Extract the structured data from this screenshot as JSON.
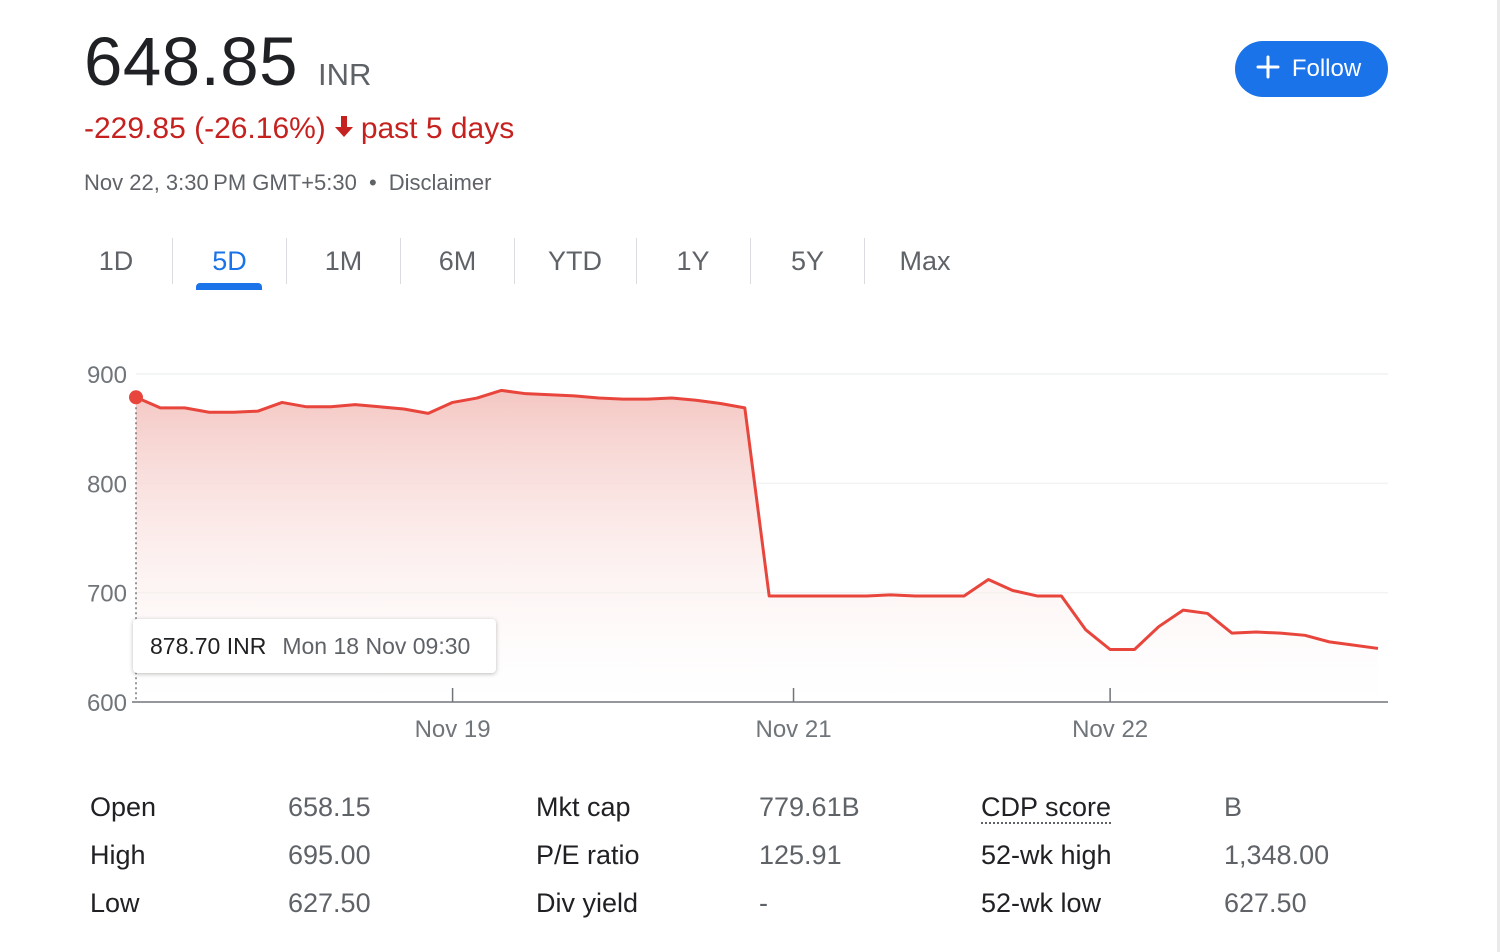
{
  "quote": {
    "price": "648.85",
    "currency": "INR",
    "change": "-229.85 (-26.16%)",
    "change_arrow": "↓",
    "change_period": "past 5 days",
    "timestamp": "Nov 22, 3:30 PM GMT+5:30",
    "separator": "•",
    "disclaimer": "Disclaimer"
  },
  "follow": {
    "icon": "plus-icon",
    "label": "Follow"
  },
  "tabs": [
    {
      "label": "1D"
    },
    {
      "label": "5D",
      "active": true
    },
    {
      "label": "1M"
    },
    {
      "label": "6M"
    },
    {
      "label": "YTD"
    },
    {
      "label": "1Y"
    },
    {
      "label": "5Y"
    },
    {
      "label": "Max"
    }
  ],
  "tooltip": {
    "price": "878.70 INR",
    "date": "Mon 18 Nov 09:30"
  },
  "chart_data": {
    "type": "area",
    "title": "",
    "xlabel": "",
    "ylabel": "",
    "ylim": [
      600,
      900
    ],
    "y_ticks": [
      900,
      800,
      700,
      600
    ],
    "x_ticks": [
      {
        "label": "Nov 19",
        "index": 13
      },
      {
        "label": "Nov 21",
        "index": 27
      },
      {
        "label": "Nov 22",
        "index": 40
      }
    ],
    "grid": true,
    "colors": {
      "line": "#e8453c",
      "fill_top": "#f4c7c3",
      "marker": "#e8453c"
    },
    "series": [
      {
        "values": [
          878.7,
          869,
          869,
          865,
          865,
          866,
          874,
          870,
          870,
          872,
          870,
          868,
          864,
          874,
          878,
          885,
          882,
          881,
          880,
          878,
          877,
          877,
          878,
          876,
          873,
          869,
          697,
          697,
          697,
          697,
          697,
          698,
          697,
          697,
          697,
          712,
          702,
          697,
          697,
          666,
          648,
          648,
          669,
          684,
          681,
          663,
          664,
          663,
          661,
          655,
          652,
          649
        ]
      }
    ],
    "highlight": {
      "index": 0,
      "value": 878.7
    }
  },
  "stats": [
    [
      {
        "label": "Open",
        "value": "658.15"
      },
      {
        "label": "High",
        "value": "695.00"
      },
      {
        "label": "Low",
        "value": "627.50"
      }
    ],
    [
      {
        "label": "Mkt cap",
        "value": "779.61B"
      },
      {
        "label": "P/E ratio",
        "value": "125.91"
      },
      {
        "label": "Div yield",
        "value": "-"
      }
    ],
    [
      {
        "label": "CDP score",
        "value": "B"
      },
      {
        "label": "52-wk high",
        "value": "1,348.00"
      },
      {
        "label": "52-wk low",
        "value": "627.50"
      }
    ]
  ]
}
